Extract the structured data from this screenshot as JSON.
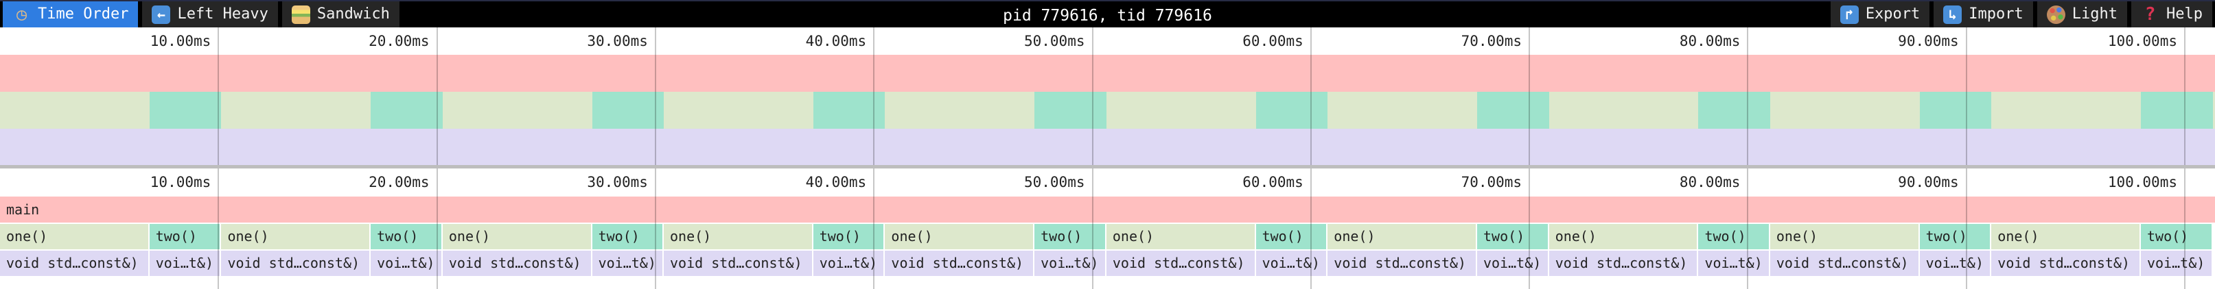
{
  "toolbar": {
    "tabs": [
      {
        "label": "Time Order",
        "icon": "clock-icon",
        "active": true
      },
      {
        "label": "Left Heavy",
        "icon": "left-arrow-icon",
        "active": false
      },
      {
        "label": "Sandwich",
        "icon": "sandwich-icon",
        "active": false
      }
    ],
    "title": "pid 779616, tid 779616",
    "actions": [
      {
        "label": "Export",
        "icon": "export-icon"
      },
      {
        "label": "Import",
        "icon": "import-icon"
      },
      {
        "label": "Light",
        "icon": "palette-icon"
      },
      {
        "label": "Help",
        "icon": "help-icon"
      }
    ]
  },
  "ruler": {
    "unit": "ms",
    "tick_interval_ms": 10,
    "ticks": [
      {
        "ms": 10,
        "label": "10.00ms"
      },
      {
        "ms": 20,
        "label": "20.00ms"
      },
      {
        "ms": 30,
        "label": "30.00ms"
      },
      {
        "ms": 40,
        "label": "40.00ms"
      },
      {
        "ms": 50,
        "label": "50.00ms"
      },
      {
        "ms": 60,
        "label": "60.00ms"
      },
      {
        "ms": 70,
        "label": "70.00ms"
      },
      {
        "ms": 80,
        "label": "80.00ms"
      },
      {
        "ms": 90,
        "label": "90.00ms"
      },
      {
        "ms": 100,
        "label": "100.00ms"
      }
    ]
  },
  "flamegraph": {
    "type": "flamegraph-time-order",
    "total_visible_ms": 101.4,
    "root_label": "main",
    "call_labels": {
      "one": "one()",
      "two": "two()",
      "one_child": "void std…const&)",
      "two_child": "voi…t&)"
    },
    "segments": [
      {
        "one_start_ms": 0,
        "one_end_ms": 6.84,
        "two_end_ms": 10.13
      },
      {
        "one_start_ms": 10.13,
        "one_end_ms": 16.97,
        "two_end_ms": 20.26
      },
      {
        "one_start_ms": 20.26,
        "one_end_ms": 27.1,
        "two_end_ms": 30.38
      },
      {
        "one_start_ms": 30.38,
        "one_end_ms": 37.22,
        "two_end_ms": 40.51
      },
      {
        "one_start_ms": 40.51,
        "one_end_ms": 47.35,
        "two_end_ms": 50.64
      },
      {
        "one_start_ms": 50.64,
        "one_end_ms": 57.48,
        "two_end_ms": 60.77
      },
      {
        "one_start_ms": 60.77,
        "one_end_ms": 67.61,
        "two_end_ms": 70.9
      },
      {
        "one_start_ms": 70.9,
        "one_end_ms": 77.74,
        "two_end_ms": 81.02
      },
      {
        "one_start_ms": 81.02,
        "one_end_ms": 87.86,
        "two_end_ms": 91.15
      },
      {
        "one_start_ms": 91.15,
        "one_end_ms": 97.99,
        "two_end_ms": 101.28
      }
    ]
  },
  "colors": {
    "active_tab": "#2f7de1",
    "toolbar_bg": "#000000",
    "button_bg": "#262626",
    "frame_root": "#ffbfbf",
    "frame_one": "#dde8cc",
    "frame_two": "#9ee3cc",
    "frame_child": "#ded9f4",
    "grid_line": "rgba(0,0,0,0.22)",
    "divider": "#bdbdbd"
  }
}
